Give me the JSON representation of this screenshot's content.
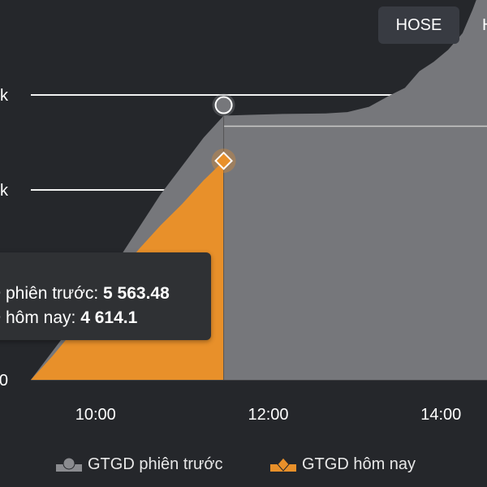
{
  "tabs": [
    {
      "label": "HOSE",
      "active": true
    },
    {
      "label": "H",
      "active": false
    }
  ],
  "chart_data": {
    "type": "area",
    "y_tick_labels": [
      "0",
      "k",
      "k"
    ],
    "x_tick_labels": [
      "10:00",
      "12:00",
      "14:00"
    ],
    "x_ticks_minutes": [
      600,
      720,
      840
    ],
    "xlim_minutes": [
      555,
      872
    ],
    "ylim": [
      0,
      8000
    ],
    "y_gridlines": [
      6000,
      4000
    ],
    "series": [
      {
        "name": "GTGD phiên trước",
        "color": "#76777b",
        "points": [
          [
            555,
            0
          ],
          [
            570,
            600
          ],
          [
            585,
            1200
          ],
          [
            600,
            1800
          ],
          [
            615,
            2500
          ],
          [
            630,
            3200
          ],
          [
            645,
            3900
          ],
          [
            660,
            4500
          ],
          [
            675,
            5100
          ],
          [
            689,
            5563.48
          ],
          [
            705,
            5580
          ],
          [
            730,
            5600
          ],
          [
            760,
            5610
          ],
          [
            775,
            5640
          ],
          [
            790,
            5750
          ],
          [
            805,
            6000
          ],
          [
            815,
            6150
          ],
          [
            825,
            6500
          ],
          [
            835,
            6700
          ],
          [
            845,
            6950
          ],
          [
            855,
            7300
          ],
          [
            862,
            7800
          ],
          [
            872,
            8600
          ]
        ]
      },
      {
        "name": "GTGD hôm nay",
        "color": "#e8902a",
        "points": [
          [
            555,
            0
          ],
          [
            570,
            500
          ],
          [
            585,
            1050
          ],
          [
            600,
            1600
          ],
          [
            615,
            2200
          ],
          [
            630,
            2750
          ],
          [
            645,
            3250
          ],
          [
            660,
            3700
          ],
          [
            675,
            4200
          ],
          [
            689,
            4614.1
          ]
        ]
      }
    ],
    "tooltip": {
      "rows": [
        {
          "label": "D phiên trước: ",
          "value": "5 563.48"
        },
        {
          "label": "D hôm nay: ",
          "value": "4 614.1"
        }
      ]
    },
    "legend": [
      {
        "name": "GTGD phiên trước",
        "marker": "circle",
        "color": "#76777b"
      },
      {
        "name": "GTGD hôm nay",
        "marker": "diamond",
        "color": "#e8902a"
      }
    ],
    "legend_position": "bottom"
  }
}
